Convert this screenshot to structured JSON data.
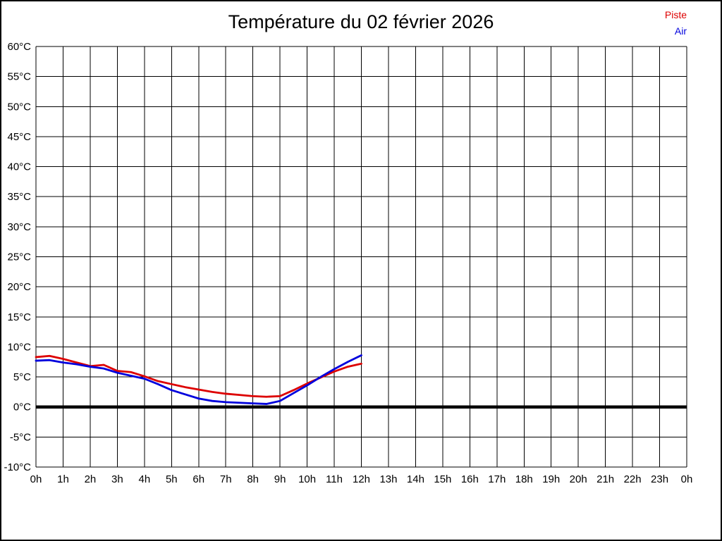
{
  "page": {
    "background": "#ffffff",
    "frame_color": "#000000"
  },
  "title": "Température du 02 février 2026",
  "legend": [
    {
      "label": "Piste",
      "color": "#dd0000"
    },
    {
      "label": "Air",
      "color": "#0000dd"
    }
  ],
  "chart_data": {
    "type": "line",
    "title": "Température du 02 février 2026",
    "grid": true,
    "legend_position": "top-right",
    "xlim": [
      0,
      24
    ],
    "ylim": [
      -10,
      60
    ],
    "x_tick_values": [
      0,
      1,
      2,
      3,
      4,
      5,
      6,
      7,
      8,
      9,
      10,
      11,
      12,
      13,
      14,
      15,
      16,
      17,
      18,
      19,
      20,
      21,
      22,
      23,
      24
    ],
    "x_tick_labels": [
      "0h",
      "1h",
      "2h",
      "3h",
      "4h",
      "5h",
      "6h",
      "7h",
      "8h",
      "9h",
      "10h",
      "11h",
      "12h",
      "13h",
      "14h",
      "15h",
      "16h",
      "17h",
      "18h",
      "19h",
      "20h",
      "21h",
      "22h",
      "23h",
      "0h"
    ],
    "y_tick_values": [
      60,
      55,
      50,
      45,
      40,
      35,
      30,
      25,
      20,
      15,
      10,
      5,
      0,
      -5,
      -10
    ],
    "y_tick_labels": [
      "60°C",
      "55°C",
      "50°C",
      "45°C",
      "40°C",
      "35°C",
      "30°C",
      "25°C",
      "20°C",
      "15°C",
      "10°C",
      "5°C",
      "0°C",
      "-5°C",
      "-10°C"
    ],
    "zero_line": {
      "value": 0,
      "color": "#000000",
      "width": 4.5
    },
    "x": [
      0,
      0.5,
      1,
      1.5,
      2,
      2.5,
      3,
      3.5,
      4,
      4.5,
      5,
      5.5,
      6,
      6.5,
      7,
      7.5,
      8,
      8.5,
      9,
      9.5,
      10,
      10.5,
      11,
      11.5,
      12
    ],
    "series": [
      {
        "name": "Piste",
        "color": "#dd0000",
        "values": [
          8.3,
          8.5,
          8.0,
          7.4,
          6.8,
          7.0,
          6.0,
          5.8,
          5.1,
          4.3,
          3.8,
          3.3,
          2.9,
          2.5,
          2.2,
          2.0,
          1.8,
          1.7,
          1.8,
          2.8,
          3.9,
          4.9,
          5.9,
          6.7,
          7.2
        ]
      },
      {
        "name": "Air",
        "color": "#0000dd",
        "values": [
          7.7,
          7.8,
          7.4,
          7.1,
          6.7,
          6.4,
          5.7,
          5.2,
          4.7,
          3.8,
          2.8,
          2.1,
          1.4,
          1.0,
          0.8,
          0.7,
          0.6,
          0.5,
          1.0,
          2.3,
          3.6,
          5.0,
          6.3,
          7.5,
          8.6
        ]
      }
    ]
  }
}
